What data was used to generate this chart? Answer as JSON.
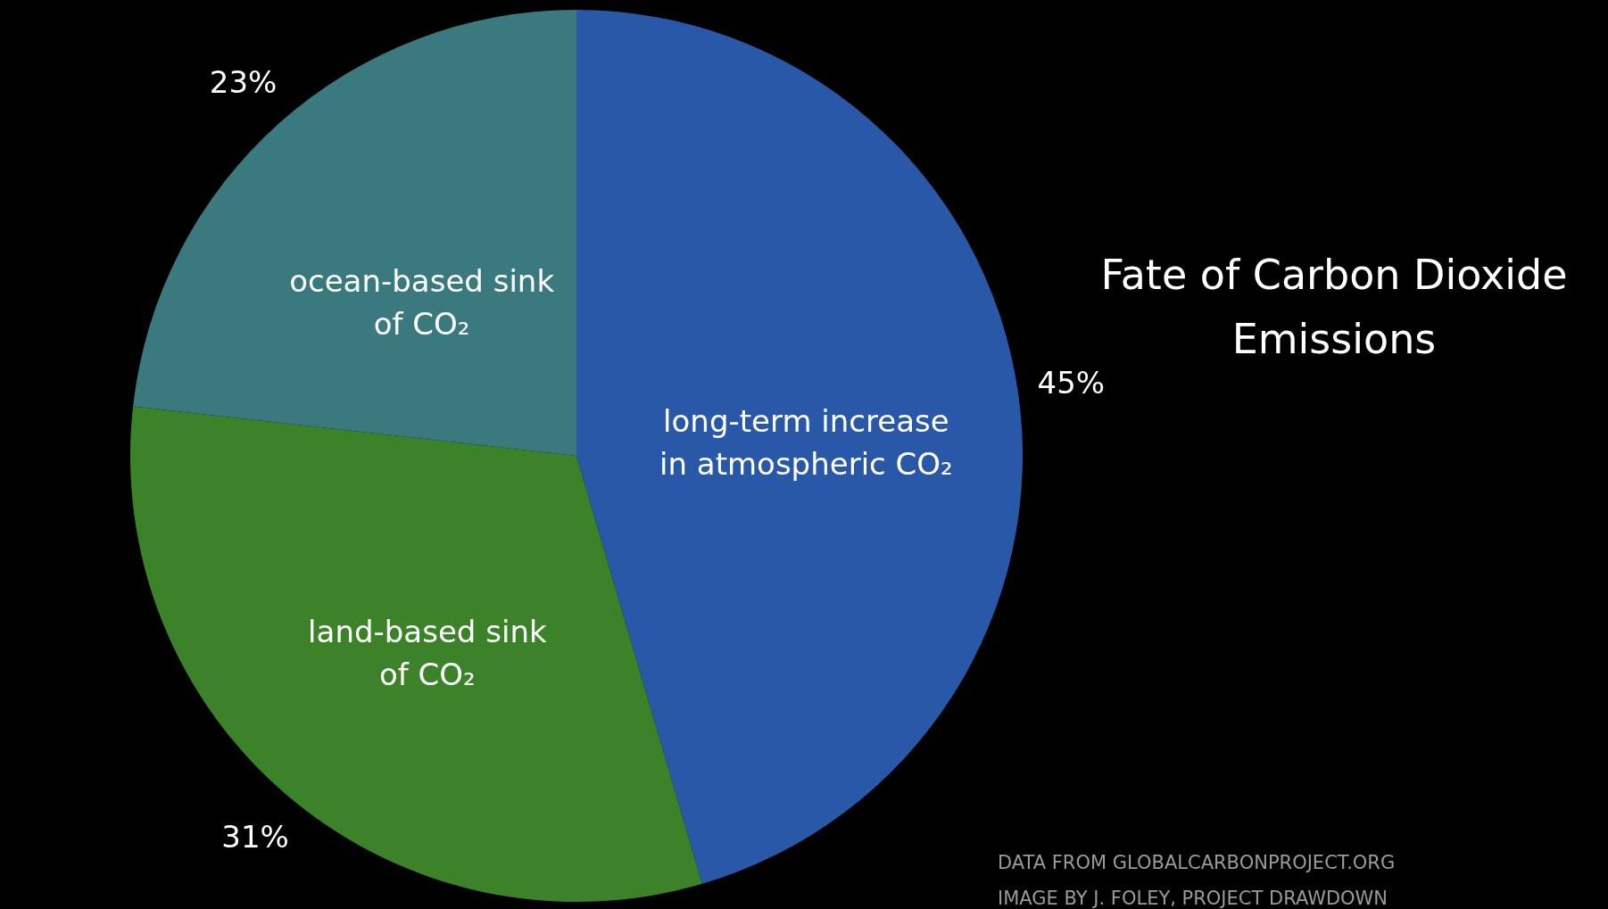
{
  "chart_data": {
    "type": "pie",
    "title": "Fate of Carbon Dioxide Emissions",
    "categories": [
      "long-term increase in atmospheric CO₂",
      "land-based sink of CO₂",
      "ocean-based sink of CO₂"
    ],
    "values": [
      45,
      31,
      23
    ],
    "colors": [
      "#2a58a8",
      "#3b8229",
      "#3a7a7e"
    ],
    "value_labels": [
      "45%",
      "31%",
      "23%"
    ],
    "annotations": [
      "DATA FROM GLOBALCARBONPROJECT.ORG",
      "IMAGE BY J. FOLEY, PROJECT DRAWDOWN"
    ]
  }
}
